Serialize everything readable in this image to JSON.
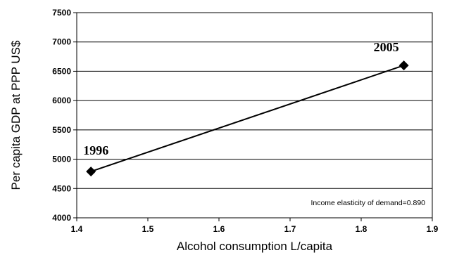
{
  "chart_data": {
    "type": "line",
    "title": "",
    "xlabel": "Alcohol consumption L/capita",
    "ylabel": "Per capita GDP at PPP US$",
    "xlim": [
      1.4,
      1.9
    ],
    "ylim": [
      4000,
      7500
    ],
    "x_ticks": [
      "1.4",
      "1.5",
      "1.6",
      "1.7",
      "1.8",
      "1.9"
    ],
    "y_ticks": [
      "4000",
      "4500",
      "5000",
      "5500",
      "6000",
      "6500",
      "7000",
      "7500"
    ],
    "grid": "horizontal",
    "legend": "none",
    "series": [
      {
        "points": [
          {
            "x": 1.42,
            "y": 4790,
            "label": "1996"
          },
          {
            "x": 1.86,
            "y": 6600,
            "label": "2005"
          }
        ],
        "marker": "diamond",
        "color": "#000000"
      }
    ],
    "annotation": "Income elasticity of demand=0.890"
  }
}
